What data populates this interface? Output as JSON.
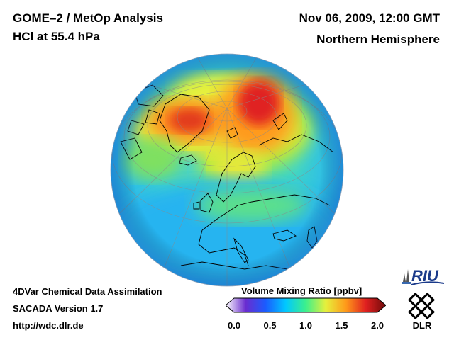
{
  "header": {
    "title_line1": "GOME–2 / MetOp Analysis",
    "title_line2": "HCl at 55.4 hPa",
    "date": "Nov 06, 2009, 12:00 GMT",
    "region": "Northern Hemisphere"
  },
  "footer": {
    "line1": "4DVar Chemical Data Assimilation",
    "line2": "SACADA Version 1.7",
    "url": "http://wdc.dlr.de"
  },
  "colorbar": {
    "label": "Volume Mixing Ratio [ppbv]",
    "ticks": [
      "0.0",
      "0.5",
      "1.0",
      "1.5",
      "2.0"
    ],
    "range": [
      0.0,
      2.0
    ],
    "colors": [
      "#ffffff",
      "#6a2ccf",
      "#1a5cff",
      "#00c8ff",
      "#3cf08c",
      "#e6f03c",
      "#ff9a1a",
      "#e02020",
      "#6e0a0a"
    ]
  },
  "logos": {
    "riu": "RIU",
    "dlr": "DLR"
  },
  "map": {
    "projection": "orthographic",
    "hemisphere": "Northern Hemisphere"
  }
}
